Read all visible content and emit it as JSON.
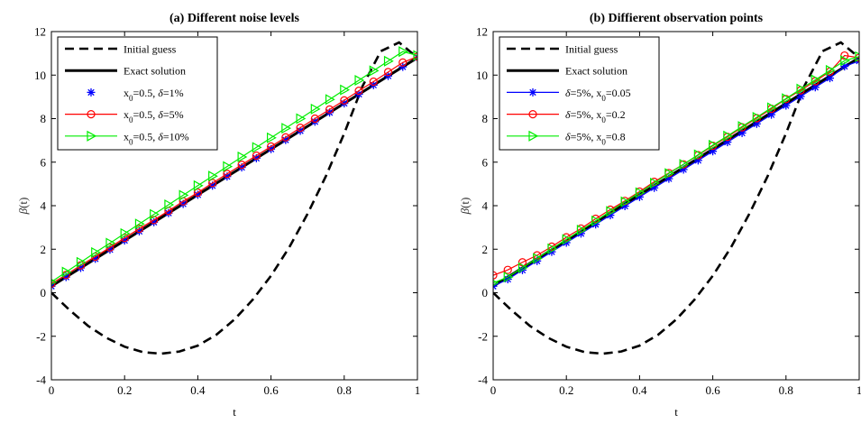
{
  "chart_data": [
    {
      "type": "line",
      "title": "(a) Different noise levels",
      "xlabel": "t",
      "ylabel": "β(t)",
      "xlim": [
        0,
        1
      ],
      "ylim": [
        -4,
        12
      ],
      "xticks": [
        "0",
        "0.2",
        "0.4",
        "0.6",
        "0.8",
        "1"
      ],
      "yticks": [
        "-4",
        "-2",
        "0",
        "2",
        "4",
        "6",
        "8",
        "10",
        "12"
      ],
      "grid": false,
      "legend_position": "top-left",
      "legend": [
        {
          "parts": [
            {
              "t": "Initial guess"
            }
          ]
        },
        {
          "parts": [
            {
              "t": "Exact solution"
            }
          ]
        },
        {
          "parts": [
            {
              "t": "x"
            },
            {
              "t": "0",
              "sub": true
            },
            {
              "t": "=0.5, "
            },
            {
              "t": "δ",
              "it": true
            },
            {
              "t": "=1%"
            }
          ]
        },
        {
          "parts": [
            {
              "t": "x"
            },
            {
              "t": "0",
              "sub": true
            },
            {
              "t": "=0.5, "
            },
            {
              "t": "δ",
              "it": true
            },
            {
              "t": "=5%"
            }
          ]
        },
        {
          "parts": [
            {
              "t": "x"
            },
            {
              "t": "0",
              "sub": true
            },
            {
              "t": "=0.5, "
            },
            {
              "t": "δ",
              "it": true
            },
            {
              "t": "=10%"
            }
          ]
        }
      ],
      "series": [
        {
          "style": "dash",
          "color": "#000000",
          "marker": "none",
          "x": [
            0,
            0.05,
            0.1,
            0.15,
            0.2,
            0.25,
            0.3,
            0.35,
            0.4,
            0.45,
            0.5,
            0.55,
            0.6,
            0.65,
            0.7,
            0.75,
            0.8,
            0.85,
            0.9,
            0.95,
            1
          ],
          "y": [
            0,
            -0.8,
            -1.52,
            -2.07,
            -2.48,
            -2.73,
            -2.8,
            -2.7,
            -2.43,
            -1.94,
            -1.23,
            -0.32,
            0.78,
            2.09,
            3.63,
            5.36,
            7.32,
            9.49,
            11.1,
            11.5,
            10.8
          ]
        },
        {
          "style": "solid",
          "color": "#000000",
          "marker": "none",
          "x": [
            0,
            1
          ],
          "y": [
            0.3,
            10.8
          ]
        },
        {
          "style": "none",
          "color": "#0000ff",
          "marker": "star",
          "x": [
            0,
            0.04,
            0.08,
            0.12,
            0.16,
            0.2,
            0.24,
            0.28,
            0.32,
            0.36,
            0.4,
            0.44,
            0.48,
            0.52,
            0.56,
            0.6,
            0.64,
            0.68,
            0.72,
            0.76,
            0.8,
            0.84,
            0.88,
            0.92,
            0.96,
            1
          ],
          "y": [
            0.3,
            0.72,
            1.14,
            1.56,
            1.98,
            2.4,
            2.82,
            3.24,
            3.66,
            4.08,
            4.5,
            4.92,
            5.34,
            5.76,
            6.18,
            6.6,
            7.02,
            7.44,
            7.86,
            8.28,
            8.7,
            9.12,
            9.54,
            9.96,
            10.38,
            10.8
          ]
        },
        {
          "style": "solid",
          "color": "#ff0000",
          "marker": "circle",
          "x": [
            0,
            0.04,
            0.08,
            0.12,
            0.16,
            0.2,
            0.24,
            0.28,
            0.32,
            0.36,
            0.4,
            0.44,
            0.48,
            0.52,
            0.56,
            0.6,
            0.64,
            0.68,
            0.72,
            0.76,
            0.8,
            0.84,
            0.88,
            0.92,
            0.96,
            1
          ],
          "y": [
            0.42,
            0.82,
            1.26,
            1.66,
            2.08,
            2.52,
            2.94,
            3.34,
            3.76,
            4.2,
            4.6,
            5.04,
            5.46,
            5.88,
            6.3,
            6.72,
            7.14,
            7.58,
            8.0,
            8.42,
            8.84,
            9.28,
            9.7,
            10.14,
            10.58,
            10.85
          ]
        },
        {
          "style": "solid",
          "color": "#00ee00",
          "marker": "triangle-right",
          "x": [
            0,
            0.04,
            0.08,
            0.12,
            0.16,
            0.2,
            0.24,
            0.28,
            0.32,
            0.36,
            0.4,
            0.44,
            0.48,
            0.52,
            0.56,
            0.6,
            0.64,
            0.68,
            0.72,
            0.76,
            0.8,
            0.84,
            0.88,
            0.92,
            0.96,
            1
          ],
          "y": [
            0.5,
            0.95,
            1.4,
            1.85,
            2.28,
            2.72,
            3.16,
            3.6,
            4.04,
            4.48,
            4.92,
            5.36,
            5.8,
            6.24,
            6.68,
            7.12,
            7.56,
            8.0,
            8.44,
            8.88,
            9.32,
            9.76,
            10.2,
            10.64,
            11.08,
            10.9
          ]
        }
      ]
    },
    {
      "type": "line",
      "title": "(b) Diffierent observation points",
      "xlabel": "t",
      "ylabel": "β(t)",
      "xlim": [
        0,
        1
      ],
      "ylim": [
        -4,
        12
      ],
      "xticks": [
        "0",
        "0.2",
        "0.4",
        "0.6",
        "0.8",
        "1"
      ],
      "yticks": [
        "-4",
        "-2",
        "0",
        "2",
        "4",
        "6",
        "8",
        "10",
        "12"
      ],
      "grid": false,
      "legend_position": "top-left",
      "legend": [
        {
          "parts": [
            {
              "t": "Initial guess"
            }
          ]
        },
        {
          "parts": [
            {
              "t": "Exact solution"
            }
          ]
        },
        {
          "parts": [
            {
              "t": "δ",
              "it": true
            },
            {
              "t": "=5%, x"
            },
            {
              "t": "0",
              "sub": true
            },
            {
              "t": "=0.05"
            }
          ]
        },
        {
          "parts": [
            {
              "t": "δ",
              "it": true
            },
            {
              "t": "=5%, x"
            },
            {
              "t": "0",
              "sub": true
            },
            {
              "t": "=0.2"
            }
          ]
        },
        {
          "parts": [
            {
              "t": "δ",
              "it": true
            },
            {
              "t": "=5%, x"
            },
            {
              "t": "0",
              "sub": true
            },
            {
              "t": "=0.8"
            }
          ]
        }
      ],
      "series": [
        {
          "style": "dash",
          "color": "#000000",
          "marker": "none",
          "x": [
            0,
            0.05,
            0.1,
            0.15,
            0.2,
            0.25,
            0.3,
            0.35,
            0.4,
            0.45,
            0.5,
            0.55,
            0.6,
            0.65,
            0.7,
            0.75,
            0.8,
            0.85,
            0.9,
            0.95,
            1
          ],
          "y": [
            0,
            -0.8,
            -1.52,
            -2.07,
            -2.48,
            -2.73,
            -2.8,
            -2.7,
            -2.43,
            -1.94,
            -1.23,
            -0.32,
            0.78,
            2.09,
            3.63,
            5.36,
            7.32,
            9.49,
            11.1,
            11.5,
            10.8
          ]
        },
        {
          "style": "solid",
          "color": "#000000",
          "marker": "none",
          "x": [
            0,
            1
          ],
          "y": [
            0.3,
            10.8
          ]
        },
        {
          "style": "solid",
          "color": "#0000ff",
          "marker": "star",
          "x": [
            0,
            0.04,
            0.08,
            0.12,
            0.16,
            0.2,
            0.24,
            0.28,
            0.32,
            0.36,
            0.4,
            0.44,
            0.48,
            0.52,
            0.56,
            0.6,
            0.64,
            0.68,
            0.72,
            0.76,
            0.8,
            0.84,
            0.88,
            0.92,
            0.96,
            1
          ],
          "y": [
            0.3,
            0.62,
            1.04,
            1.46,
            1.88,
            2.3,
            2.72,
            3.14,
            3.56,
            3.98,
            4.4,
            4.82,
            5.24,
            5.66,
            6.08,
            6.5,
            6.92,
            7.34,
            7.76,
            8.18,
            8.6,
            9.02,
            9.44,
            9.86,
            10.4,
            10.65
          ]
        },
        {
          "style": "solid",
          "color": "#ff0000",
          "marker": "circle",
          "x": [
            0,
            0.04,
            0.08,
            0.12,
            0.16,
            0.2,
            0.24,
            0.28,
            0.32,
            0.36,
            0.4,
            0.44,
            0.48,
            0.52,
            0.56,
            0.6,
            0.64,
            0.68,
            0.72,
            0.76,
            0.8,
            0.84,
            0.88,
            0.92,
            0.96,
            1
          ],
          "y": [
            0.8,
            1.05,
            1.4,
            1.72,
            2.12,
            2.55,
            2.95,
            3.4,
            3.82,
            4.22,
            4.65,
            5.1,
            5.5,
            5.9,
            6.32,
            6.75,
            7.16,
            7.6,
            8.02,
            8.45,
            8.9,
            9.3,
            9.72,
            10.16,
            10.9,
            10.8
          ]
        },
        {
          "style": "solid",
          "color": "#00ee00",
          "marker": "triangle-right",
          "x": [
            0,
            0.04,
            0.08,
            0.12,
            0.16,
            0.2,
            0.24,
            0.28,
            0.32,
            0.36,
            0.4,
            0.44,
            0.48,
            0.52,
            0.56,
            0.6,
            0.64,
            0.68,
            0.72,
            0.76,
            0.8,
            0.84,
            0.88,
            0.92,
            0.96,
            1
          ],
          "y": [
            0.45,
            0.72,
            1.15,
            1.58,
            2.02,
            2.45,
            2.88,
            3.3,
            3.74,
            4.18,
            4.6,
            5.04,
            5.48,
            5.9,
            6.34,
            6.78,
            7.2,
            7.64,
            8.06,
            8.5,
            8.92,
            9.36,
            9.78,
            10.22,
            10.66,
            10.85
          ]
        }
      ]
    }
  ]
}
